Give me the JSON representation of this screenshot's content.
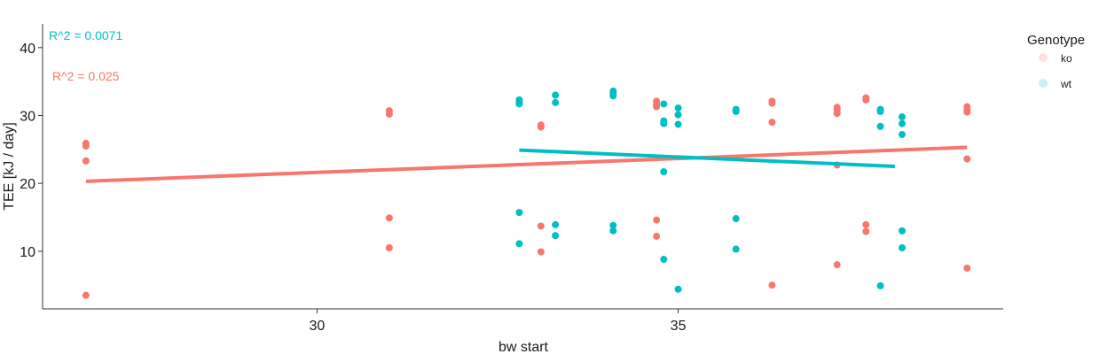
{
  "chart_data": {
    "type": "scatter",
    "xlabel": "bw start",
    "ylabel": "TEE [kJ / day]",
    "xlim": [
      26.2,
      39.5
    ],
    "ylim": [
      1.5,
      43.5
    ],
    "x_ticks": [
      30,
      35
    ],
    "y_ticks": [
      10,
      20,
      30,
      40
    ],
    "grid": false,
    "legend": {
      "title": "Genotype",
      "placement": "right",
      "entries": [
        {
          "label": "ko",
          "color": "#F8766D"
        },
        {
          "label": "wt",
          "color": "#00BFC4"
        }
      ]
    },
    "annotations": [
      {
        "text": "R^2 = 0.0071",
        "color": "#00BFC4"
      },
      {
        "text": "R^2 = 0.025",
        "color": "#F8766D"
      }
    ],
    "series": [
      {
        "name": "ko",
        "color": "#F8766D",
        "points": [
          {
            "x": 26.8,
            "y": 25.9
          },
          {
            "x": 26.8,
            "y": 25.5
          },
          {
            "x": 26.8,
            "y": 23.3
          },
          {
            "x": 26.8,
            "y": 3.5
          },
          {
            "x": 31.0,
            "y": 30.7
          },
          {
            "x": 31.0,
            "y": 30.2
          },
          {
            "x": 31.0,
            "y": 14.9
          },
          {
            "x": 31.0,
            "y": 10.5
          },
          {
            "x": 33.1,
            "y": 28.6
          },
          {
            "x": 33.1,
            "y": 28.3
          },
          {
            "x": 33.1,
            "y": 13.7
          },
          {
            "x": 33.1,
            "y": 9.9
          },
          {
            "x": 34.7,
            "y": 32.1
          },
          {
            "x": 34.7,
            "y": 31.6
          },
          {
            "x": 34.7,
            "y": 31.3
          },
          {
            "x": 34.7,
            "y": 14.6
          },
          {
            "x": 34.7,
            "y": 12.2
          },
          {
            "x": 36.3,
            "y": 32.1
          },
          {
            "x": 36.3,
            "y": 31.8
          },
          {
            "x": 36.3,
            "y": 29.0
          },
          {
            "x": 36.3,
            "y": 5.0
          },
          {
            "x": 37.2,
            "y": 31.2
          },
          {
            "x": 37.2,
            "y": 30.8
          },
          {
            "x": 37.2,
            "y": 30.3
          },
          {
            "x": 37.2,
            "y": 22.7
          },
          {
            "x": 37.2,
            "y": 8.0
          },
          {
            "x": 37.6,
            "y": 32.6
          },
          {
            "x": 37.6,
            "y": 32.3
          },
          {
            "x": 37.6,
            "y": 13.9
          },
          {
            "x": 37.6,
            "y": 12.9
          },
          {
            "x": 39.0,
            "y": 31.3
          },
          {
            "x": 39.0,
            "y": 30.9
          },
          {
            "x": 39.0,
            "y": 30.5
          },
          {
            "x": 39.0,
            "y": 23.6
          },
          {
            "x": 39.0,
            "y": 7.5
          }
        ],
        "trend": {
          "x": [
            26.8,
            39.0
          ],
          "y": [
            20.3,
            25.3
          ]
        }
      },
      {
        "name": "wt",
        "color": "#00BFC4",
        "points": [
          {
            "x": 32.8,
            "y": 32.3
          },
          {
            "x": 32.8,
            "y": 31.9
          },
          {
            "x": 32.8,
            "y": 31.7
          },
          {
            "x": 32.8,
            "y": 15.7
          },
          {
            "x": 32.8,
            "y": 11.1
          },
          {
            "x": 33.3,
            "y": 33.0
          },
          {
            "x": 33.3,
            "y": 31.9
          },
          {
            "x": 33.3,
            "y": 13.9
          },
          {
            "x": 33.3,
            "y": 12.3
          },
          {
            "x": 34.1,
            "y": 33.6
          },
          {
            "x": 34.1,
            "y": 33.3
          },
          {
            "x": 34.1,
            "y": 32.9
          },
          {
            "x": 34.1,
            "y": 13.8
          },
          {
            "x": 34.1,
            "y": 13.0
          },
          {
            "x": 34.8,
            "y": 31.7
          },
          {
            "x": 34.8,
            "y": 29.2
          },
          {
            "x": 34.8,
            "y": 28.8
          },
          {
            "x": 34.8,
            "y": 21.7
          },
          {
            "x": 34.8,
            "y": 8.8
          },
          {
            "x": 35.0,
            "y": 31.1
          },
          {
            "x": 35.0,
            "y": 30.1
          },
          {
            "x": 35.0,
            "y": 28.7
          },
          {
            "x": 35.0,
            "y": 4.4
          },
          {
            "x": 35.8,
            "y": 30.9
          },
          {
            "x": 35.8,
            "y": 30.6
          },
          {
            "x": 35.8,
            "y": 14.8
          },
          {
            "x": 35.8,
            "y": 10.3
          },
          {
            "x": 37.8,
            "y": 30.9
          },
          {
            "x": 37.8,
            "y": 30.6
          },
          {
            "x": 37.8,
            "y": 28.4
          },
          {
            "x": 37.8,
            "y": 4.9
          },
          {
            "x": 38.1,
            "y": 29.8
          },
          {
            "x": 38.1,
            "y": 28.8
          },
          {
            "x": 38.1,
            "y": 27.2
          },
          {
            "x": 38.1,
            "y": 13.0
          },
          {
            "x": 38.1,
            "y": 10.5
          }
        ],
        "trend": {
          "x": [
            32.8,
            38.0
          ],
          "y": [
            24.9,
            22.5
          ]
        }
      }
    ]
  }
}
